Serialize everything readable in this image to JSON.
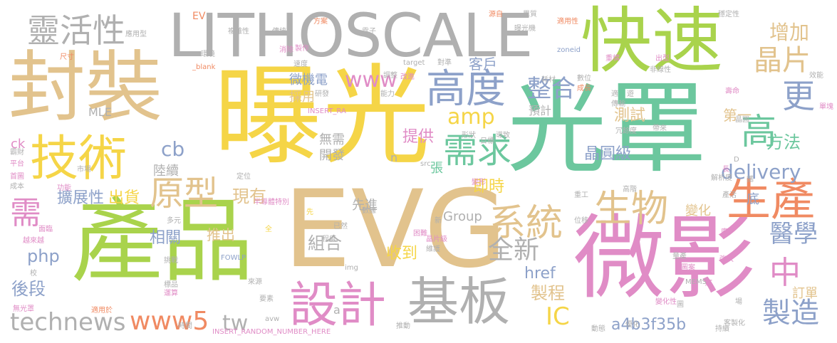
{
  "palette": {
    "yellow": "#f5d547",
    "green": "#6cc79e",
    "tan": "#e2c38d",
    "gray": "#b0b0b0",
    "lime": "#a9d34c",
    "pink": "#e08cc6",
    "orange": "#f08a62",
    "blue": "#8da1c9"
  },
  "words": [
    {
      "text": "曝光",
      "color": "yellow"
    },
    {
      "text": "光罩",
      "color": "green"
    },
    {
      "text": "EVG",
      "color": "tan"
    },
    {
      "text": "產品",
      "color": "lime"
    },
    {
      "text": "微影",
      "color": "pink"
    },
    {
      "text": "封裝",
      "color": "tan"
    },
    {
      "text": "快速",
      "color": "lime"
    },
    {
      "text": "LITHOSCALE",
      "color": "gray"
    },
    {
      "text": "技術",
      "color": "yellow"
    },
    {
      "text": "基板",
      "color": "gray"
    },
    {
      "text": "設計",
      "color": "pink"
    },
    {
      "text": "高度",
      "color": "blue"
    },
    {
      "text": "生產",
      "color": "orange"
    },
    {
      "text": "系統",
      "color": "tan"
    },
    {
      "text": "生物",
      "color": "tan"
    },
    {
      "text": "需求",
      "color": "green"
    },
    {
      "text": "原型",
      "color": "tan"
    },
    {
      "text": "靈活性",
      "color": "gray"
    },
    {
      "text": "晶片",
      "color": "tan"
    },
    {
      "text": "更",
      "color": "blue"
    },
    {
      "text": "高",
      "color": "green"
    },
    {
      "text": "整合",
      "color": "blue"
    },
    {
      "text": "technews",
      "color": "gray"
    },
    {
      "text": "www5",
      "color": "orange"
    },
    {
      "text": "tw",
      "color": "gray"
    },
    {
      "text": "需",
      "color": "pink"
    },
    {
      "text": "中",
      "color": "pink"
    },
    {
      "text": "全新",
      "color": "gray"
    },
    {
      "text": "醫學",
      "color": "blue"
    },
    {
      "text": "製造",
      "color": "blue"
    },
    {
      "text": "IC",
      "color": "yellow"
    },
    {
      "text": "增加",
      "color": "tan"
    },
    {
      "text": "amp",
      "color": "yellow"
    },
    {
      "text": "delivery",
      "color": "blue"
    },
    {
      "text": "www",
      "color": "pink"
    },
    {
      "text": "cb",
      "color": "blue"
    },
    {
      "text": "組合",
      "color": "gray"
    },
    {
      "text": "測試",
      "color": "tan"
    },
    {
      "text": "方法",
      "color": "green"
    },
    {
      "text": "現有",
      "color": "tan"
    },
    {
      "text": "提供",
      "color": "pink"
    },
    {
      "text": "晶圓級",
      "color": "blue"
    },
    {
      "text": "即時",
      "color": "yellow"
    },
    {
      "text": "擴展性",
      "color": "blue"
    },
    {
      "text": "出貨",
      "color": "yellow"
    },
    {
      "text": "相關",
      "color": "blue"
    },
    {
      "text": "php",
      "color": "blue"
    },
    {
      "text": "後段",
      "color": "blue"
    },
    {
      "text": "製程",
      "color": "tan"
    },
    {
      "text": "收到",
      "color": "yellow"
    },
    {
      "text": "推出",
      "color": "tan"
    },
    {
      "text": "a4b3f35b",
      "color": "blue"
    },
    {
      "text": "href",
      "color": "blue"
    },
    {
      "text": "訂單",
      "color": "tan"
    },
    {
      "text": "變化",
      "color": "tan"
    },
    {
      "text": "第一",
      "color": "tan"
    },
    {
      "text": "客戶",
      "color": "blue"
    },
    {
      "text": "微機電",
      "color": "blue"
    },
    {
      "text": "採用",
      "color": "tan"
    },
    {
      "text": "無需",
      "color": "gray"
    },
    {
      "text": "開發",
      "color": "gray"
    },
    {
      "text": "陸續",
      "color": "gray"
    },
    {
      "text": "先進",
      "color": "gray"
    },
    {
      "text": "Group",
      "color": "gray"
    },
    {
      "text": "預計",
      "color": "gray"
    },
    {
      "text": "底",
      "color": "blue"
    },
    {
      "text": "張",
      "color": "green"
    },
    {
      "text": "ck",
      "color": "pink"
    },
    {
      "text": "MLE",
      "color": "gray"
    },
    {
      "text": "EV",
      "color": "orange"
    },
    {
      "text": "n",
      "color": "gray"
    },
    {
      "text": "a",
      "color": "gray"
    },
    {
      "text": "傳統",
      "color": "gray"
    },
    {
      "text": "複雜性",
      "color": "gray"
    },
    {
      "text": "應用型",
      "color": "gray"
    },
    {
      "text": "方案",
      "color": "orange"
    },
    {
      "text": "電子",
      "color": "gray"
    },
    {
      "text": "適用性",
      "color": "orange"
    },
    {
      "text": "曝光機",
      "color": "gray"
    },
    {
      "text": "zoneid",
      "color": "blue"
    },
    {
      "text": "穩定性",
      "color": "gray"
    },
    {
      "text": "異質",
      "color": "gray"
    },
    {
      "text": "源自",
      "color": "orange"
    },
    {
      "text": "target",
      "color": "gray"
    },
    {
      "text": "對準",
      "color": "gray"
    },
    {
      "text": "消除",
      "color": "pink"
    },
    {
      "text": "速度",
      "color": "gray"
    },
    {
      "text": "調整",
      "color": "gray"
    },
    {
      "text": "改進",
      "color": "pink"
    },
    {
      "text": "研發",
      "color": "gray"
    },
    {
      "text": "能力",
      "color": "gray"
    },
    {
      "text": "成長",
      "color": "orange"
    },
    {
      "text": "數位",
      "color": "gray"
    },
    {
      "text": "重構",
      "color": "pink"
    },
    {
      "text": "出型",
      "color": "pink"
    },
    {
      "text": "非線性",
      "color": "gray"
    },
    {
      "text": "效能",
      "color": "gray"
    },
    {
      "text": "INSERT_RA",
      "color": "pink"
    },
    {
      "text": "INSERT_RANDOM_NUMBER_HERE",
      "color": "pink"
    },
    {
      "text": "FOWLP",
      "color": "blue"
    },
    {
      "text": "MEMS",
      "color": "gray"
    },
    {
      "text": "半導體特別",
      "color": "pink"
    },
    {
      "text": "img",
      "color": "gray"
    },
    {
      "text": "src",
      "color": "gray"
    },
    {
      "text": "晶片級",
      "color": "pink"
    },
    {
      "text": "維護",
      "color": "gray"
    },
    {
      "text": "數據",
      "color": "gray"
    },
    {
      "text": "位移",
      "color": "gray"
    },
    {
      "text": "重工",
      "color": "gray"
    },
    {
      "text": "解析度",
      "color": "gray"
    },
    {
      "text": "變形",
      "color": "pink"
    },
    {
      "text": "冗餘度",
      "color": "gray"
    },
    {
      "text": "帶來",
      "color": "gray"
    },
    {
      "text": "導致",
      "color": "gray"
    },
    {
      "text": "形狀",
      "color": "gray"
    },
    {
      "text": "日標",
      "color": "gray"
    },
    {
      "text": "傳輸",
      "color": "gray"
    },
    {
      "text": "晶圓",
      "color": "gray"
    },
    {
      "text": "單塊",
      "color": "pink"
    },
    {
      "text": "平台",
      "color": "pink"
    },
    {
      "text": "市場",
      "color": "gray"
    },
    {
      "text": "功能",
      "color": "pink"
    },
    {
      "text": "成本",
      "color": "gray"
    },
    {
      "text": "首圖",
      "color": "pink"
    },
    {
      "text": "面臨",
      "color": "pink"
    },
    {
      "text": "越來越",
      "color": "pink"
    },
    {
      "text": "挑戰",
      "color": "gray"
    },
    {
      "text": "標品",
      "color": "gray"
    },
    {
      "text": "運算",
      "color": "pink"
    },
    {
      "text": "來源",
      "color": "gray"
    },
    {
      "text": "適用於",
      "color": "orange"
    },
    {
      "text": "無光罩",
      "color": "pink"
    },
    {
      "text": "時間",
      "color": "gray"
    },
    {
      "text": "推動",
      "color": "gray"
    },
    {
      "text": "耗材",
      "color": "gray"
    },
    {
      "text": "動態",
      "color": "gray"
    },
    {
      "text": "客製化",
      "color": "gray"
    },
    {
      "text": "持續",
      "color": "gray"
    },
    {
      "text": "優化",
      "color": "gray"
    },
    {
      "text": "變化性",
      "color": "pink"
    },
    {
      "text": "量產",
      "color": "gray"
    },
    {
      "text": "圖案",
      "color": "pink"
    },
    {
      "text": "高階",
      "color": "gray"
    },
    {
      "text": "壽命",
      "color": "pink"
    },
    {
      "text": "環境",
      "color": "gray"
    },
    {
      "text": "尺寸",
      "color": "orange"
    },
    {
      "text": "_blank",
      "color": "orange"
    },
    {
      "text": "要素",
      "color": "gray"
    },
    {
      "text": "多元",
      "color": "gray"
    },
    {
      "text": "avw",
      "color": "gray"
    },
    {
      "text": "已然",
      "color": "gray"
    },
    {
      "text": "程度",
      "color": "gray"
    },
    {
      "text": "困難",
      "color": "pink"
    },
    {
      "text": "定位",
      "color": "gray"
    },
    {
      "text": "製作",
      "color": "pink"
    },
    {
      "text": "遊",
      "color": "gray"
    },
    {
      "text": "全",
      "color": "yellow"
    },
    {
      "text": "先",
      "color": "yellow"
    },
    {
      "text": "新",
      "color": "gray"
    },
    {
      "text": "D",
      "color": "gray"
    },
    {
      "text": "廣",
      "color": "pink"
    },
    {
      "text": "校",
      "color": "gray"
    },
    {
      "text": "長",
      "color": "pink"
    },
    {
      "text": "適",
      "color": "gray"
    },
    {
      "text": "產活",
      "color": "gray"
    },
    {
      "text": "應",
      "color": "pink"
    },
    {
      "text": "場",
      "color": "gray"
    },
    {
      "text": "圖",
      "color": "gray"
    },
    {
      "text": "強大",
      "color": "pink"
    },
    {
      "text": "霸財",
      "color": "gray"
    },
    {
      "text": "攜",
      "color": "gray"
    }
  ]
}
